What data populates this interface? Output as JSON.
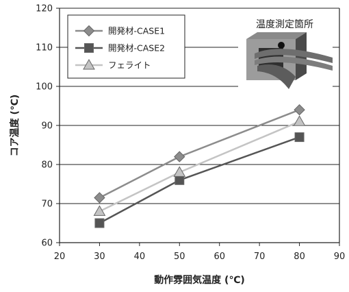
{
  "chart_data": {
    "type": "line",
    "xlabel": "動作雰囲気温度 (℃)",
    "ylabel": "コア温度 (℃)",
    "xlim": [
      20,
      90
    ],
    "ylim": [
      60,
      120
    ],
    "xticks": [
      "20",
      "30",
      "40",
      "50",
      "60",
      "70",
      "80",
      "90"
    ],
    "yticks": [
      "60",
      "70",
      "80",
      "90",
      "100",
      "110",
      "120"
    ],
    "grid": "horizontal",
    "legend_position": "top-left",
    "series": [
      {
        "name": "開発材-CASE1",
        "color": "#8c8c8c",
        "marker": "diamond",
        "x": [
          30,
          50,
          80
        ],
        "y": [
          71.5,
          82,
          94
        ]
      },
      {
        "name": "開発材-CASE2",
        "color": "#555555",
        "marker": "square",
        "x": [
          30,
          50,
          80
        ],
        "y": [
          65,
          76,
          87
        ]
      },
      {
        "name": "フェライト",
        "color": "#c4c4c4",
        "marker": "triangle",
        "x": [
          30,
          50,
          80
        ],
        "y": [
          68,
          78,
          91
        ]
      }
    ]
  },
  "inset": {
    "title": "温度測定箇所",
    "marker_color": "#111111"
  }
}
